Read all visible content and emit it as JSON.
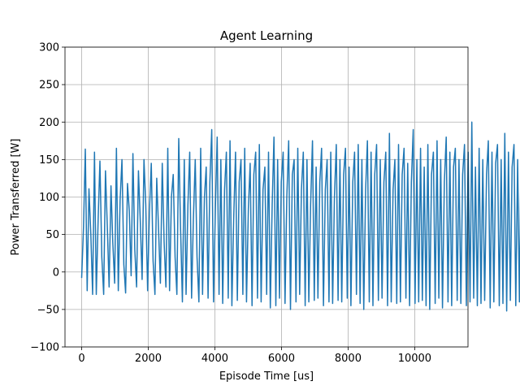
{
  "chart_data": {
    "type": "line",
    "title": "Agent Learning",
    "xlabel": "Episode Time [us]",
    "ylabel": "Power Transferred [W]",
    "xlim": [
      -500,
      11600
    ],
    "ylim": [
      -100,
      300
    ],
    "grid": true,
    "legend": "none",
    "x_ticks": [
      0,
      2000,
      4000,
      6000,
      8000,
      10000
    ],
    "x_tick_labels": [
      "0",
      "2000",
      "4000",
      "6000",
      "8000",
      "10000"
    ],
    "y_ticks": [
      -100,
      -50,
      0,
      50,
      100,
      150,
      200,
      250,
      300
    ],
    "y_tick_labels": [
      "−100",
      "−50",
      "0",
      "50",
      "100",
      "150",
      "200",
      "250",
      "300"
    ],
    "series": [
      {
        "name": "power",
        "color": "#1f77b4",
        "x_start": 0,
        "x_step": 55,
        "values": [
          -8,
          60,
          164,
          -25,
          111,
          50,
          -30,
          160,
          -30,
          70,
          148,
          20,
          -30,
          135,
          60,
          -20,
          115,
          40,
          -15,
          165,
          -25,
          95,
          150,
          10,
          -28,
          118,
          82,
          -5,
          158,
          30,
          -20,
          135,
          70,
          -10,
          150,
          90,
          -25,
          80,
          145,
          15,
          -30,
          125,
          55,
          -15,
          145,
          40,
          -20,
          165,
          -25,
          100,
          130,
          20,
          -30,
          178,
          60,
          -40,
          150,
          -30,
          90,
          160,
          -35,
          70,
          150,
          20,
          -40,
          165,
          -30,
          100,
          140,
          -35,
          120,
          190,
          -40,
          85,
          180,
          -30,
          150,
          -42,
          110,
          160,
          -35,
          175,
          -45,
          70,
          160,
          -38,
          120,
          150,
          -30,
          165,
          -40,
          85,
          145,
          -45,
          130,
          160,
          -35,
          170,
          -40,
          110,
          140,
          -30,
          160,
          -48,
          90,
          180,
          -45,
          150,
          -35,
          120,
          160,
          -42,
          100,
          175,
          -50,
          130,
          150,
          -40,
          165,
          -30,
          110,
          160,
          -45,
          150,
          -40,
          90,
          175,
          -38,
          140,
          -35,
          120,
          165,
          -45,
          110,
          150,
          -40,
          160,
          -42,
          100,
          170,
          -38,
          150,
          -40,
          130,
          165,
          -35,
          140,
          -45,
          120,
          160,
          -30,
          170,
          -42,
          150,
          -50,
          110,
          175,
          -40,
          160,
          -45,
          130,
          170,
          -38,
          150,
          -35,
          120,
          160,
          -45,
          185,
          -40,
          110,
          150,
          -42,
          170,
          -40,
          130,
          165,
          -35,
          145,
          -45,
          120,
          190,
          -42,
          150,
          -40,
          165,
          -38,
          140,
          -45,
          170,
          -50,
          130,
          160,
          -42,
          175,
          -35,
          150,
          -48,
          120,
          180,
          -40,
          160,
          -45,
          140,
          165,
          -38,
          150,
          -42,
          130,
          170,
          -45,
          160,
          -40,
          200,
          -35,
          140,
          -45,
          165,
          -42,
          150,
          -38,
          130,
          175,
          -48,
          160,
          -40,
          145,
          170,
          -45,
          150,
          -42,
          185,
          -52,
          160,
          -38,
          140,
          170,
          -45,
          150,
          -40,
          193,
          -42,
          160,
          -38,
          140,
          175,
          -15,
          125,
          40
        ]
      }
    ]
  }
}
